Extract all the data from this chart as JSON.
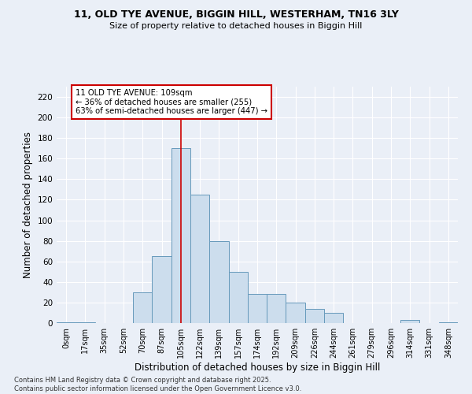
{
  "title_line1": "11, OLD TYE AVENUE, BIGGIN HILL, WESTERHAM, TN16 3LY",
  "title_line2": "Size of property relative to detached houses in Biggin Hill",
  "xlabel": "Distribution of detached houses by size in Biggin Hill",
  "ylabel": "Number of detached properties",
  "bin_labels": [
    "0sqm",
    "17sqm",
    "35sqm",
    "52sqm",
    "70sqm",
    "87sqm",
    "105sqm",
    "122sqm",
    "139sqm",
    "157sqm",
    "174sqm",
    "192sqm",
    "209sqm",
    "226sqm",
    "244sqm",
    "261sqm",
    "279sqm",
    "296sqm",
    "314sqm",
    "331sqm",
    "348sqm"
  ],
  "bar_values": [
    1,
    1,
    0,
    0,
    30,
    65,
    170,
    125,
    80,
    50,
    28,
    28,
    20,
    14,
    10,
    0,
    0,
    0,
    3,
    0,
    1
  ],
  "bar_color": "#ccdded",
  "bar_edge_color": "#6699bb",
  "property_line_x": 6,
  "annotation_text": "11 OLD TYE AVENUE: 109sqm\n← 36% of detached houses are smaller (255)\n63% of semi-detached houses are larger (447) →",
  "annotation_box_color": "#ffffff",
  "annotation_box_edge": "#cc0000",
  "vline_color": "#cc0000",
  "ylim": [
    0,
    230
  ],
  "yticks": [
    0,
    20,
    40,
    60,
    80,
    100,
    120,
    140,
    160,
    180,
    200,
    220
  ],
  "footer_line1": "Contains HM Land Registry data © Crown copyright and database right 2025.",
  "footer_line2": "Contains public sector information licensed under the Open Government Licence v3.0.",
  "bg_color": "#eaeff7",
  "plot_bg_color": "#eaeff7",
  "grid_color": "#ffffff"
}
